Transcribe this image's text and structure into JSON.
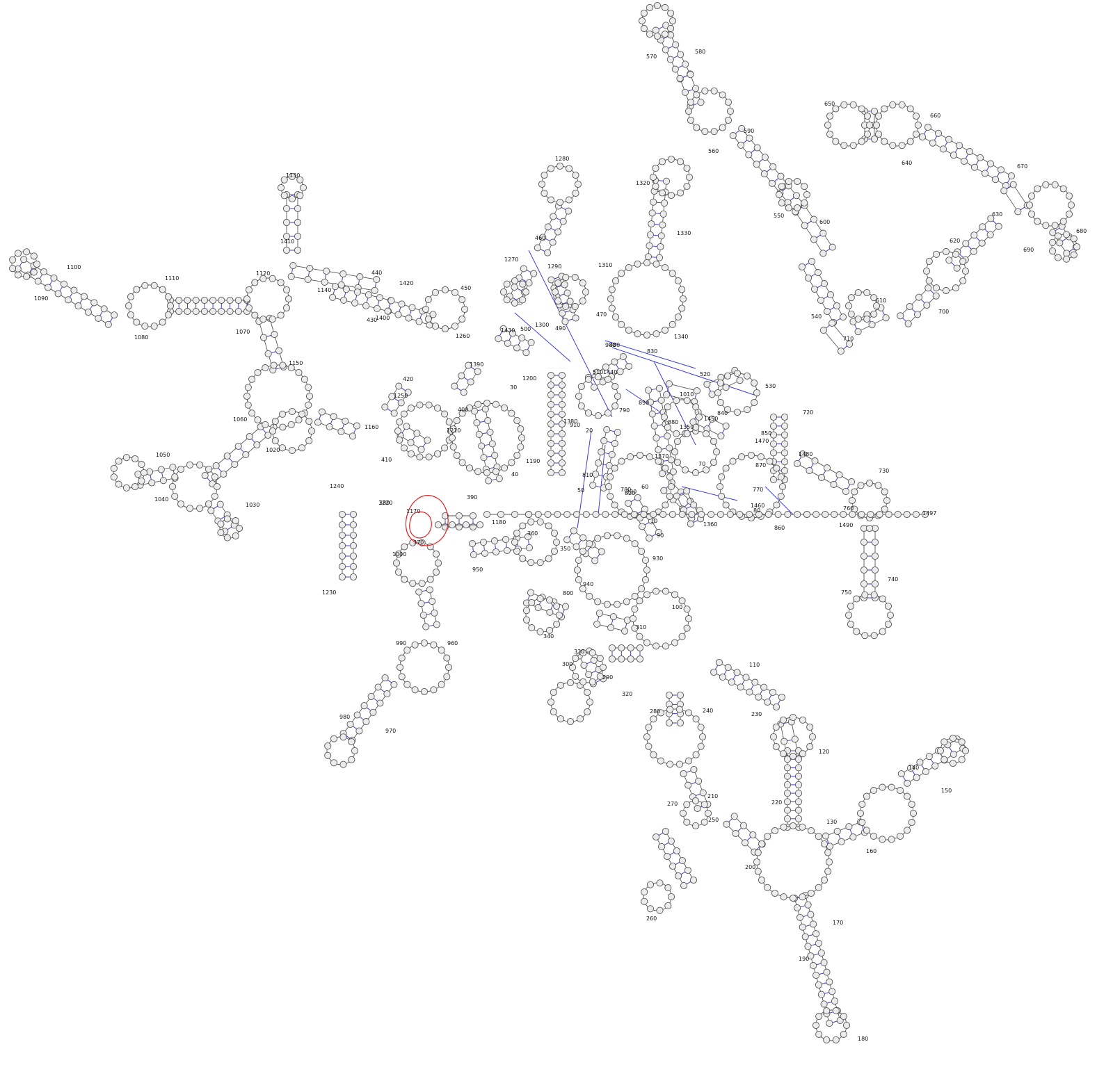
{
  "diagram": {
    "type": "rna-secondary-structure",
    "colors": {
      "nucleotide_fill": "#ececec",
      "nucleotide_stroke": "#555555",
      "base_pair": "#3b3bd9",
      "highlight": "#e02020"
    },
    "position_labels": [
      "10",
      "20",
      "30",
      "40",
      "50",
      "60",
      "70",
      "80",
      "90",
      "100",
      "110",
      "120",
      "130",
      "140",
      "150",
      "160",
      "170",
      "180",
      "190",
      "200",
      "210",
      "220",
      "230",
      "240",
      "250",
      "260",
      "270",
      "280",
      "290",
      "300",
      "310",
      "320",
      "330",
      "340",
      "350",
      "360",
      "370",
      "380",
      "390",
      "400",
      "410",
      "420",
      "430",
      "440",
      "450",
      "460",
      "470",
      "480",
      "490",
      "500",
      "510",
      "520",
      "530",
      "540",
      "550",
      "560",
      "570",
      "580",
      "590",
      "600",
      "610",
      "620",
      "630",
      "640",
      "650",
      "660",
      "670",
      "680",
      "690",
      "700",
      "710",
      "720",
      "730",
      "740",
      "750",
      "760",
      "770",
      "780",
      "790",
      "800",
      "810",
      "820",
      "830",
      "840",
      "850",
      "860",
      "870",
      "880",
      "890",
      "900",
      "910",
      "920",
      "930",
      "940",
      "950",
      "960",
      "970",
      "980",
      "990",
      "1000",
      "1010",
      "1020",
      "1030",
      "1040",
      "1050",
      "1060",
      "1070",
      "1080",
      "1090",
      "1100",
      "1110",
      "1120",
      "1130",
      "1140",
      "1150",
      "1160",
      "1170",
      "1180",
      "1190",
      "1200",
      "1210",
      "1220",
      "1230",
      "1240",
      "1250",
      "1260",
      "1270",
      "1280",
      "1290",
      "1300",
      "1310",
      "1320",
      "1330",
      "1340",
      "1350",
      "1360",
      "1370",
      "1380",
      "1390",
      "1400",
      "1410",
      "1420",
      "1430",
      "1440",
      "1450",
      "1460",
      "1470",
      "1480",
      "1490",
      "1497"
    ]
  }
}
